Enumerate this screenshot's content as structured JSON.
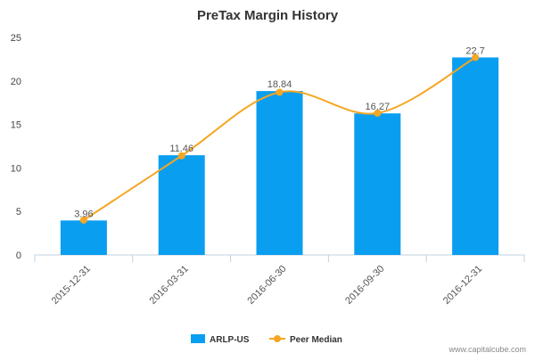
{
  "chart_data": {
    "type": "bar",
    "title": "PreTax Margin History",
    "categories": [
      "2015-12-31",
      "2016-03-31",
      "2016-06-30",
      "2016-09-30",
      "2016-12-31"
    ],
    "series": [
      {
        "name": "ARLP-US",
        "kind": "bar",
        "values": [
          3.96,
          11.46,
          18.84,
          16.27,
          22.7
        ],
        "data_labels": [
          "3.96",
          "11.46",
          "18.84",
          "16.27",
          "22.7"
        ],
        "color": "#0a9ef0"
      },
      {
        "name": "Peer Median",
        "kind": "line",
        "smooth": true,
        "values": [
          4.0,
          11.4,
          18.7,
          16.3,
          22.7
        ],
        "color": "#f5a623"
      }
    ],
    "yticks": [
      0,
      5,
      10,
      15,
      20,
      25
    ],
    "ylim": [
      0,
      25
    ],
    "xlabel": "",
    "ylabel": "",
    "grid": false,
    "legend": "bottom-center"
  },
  "credit": "www.capitalcube.com"
}
